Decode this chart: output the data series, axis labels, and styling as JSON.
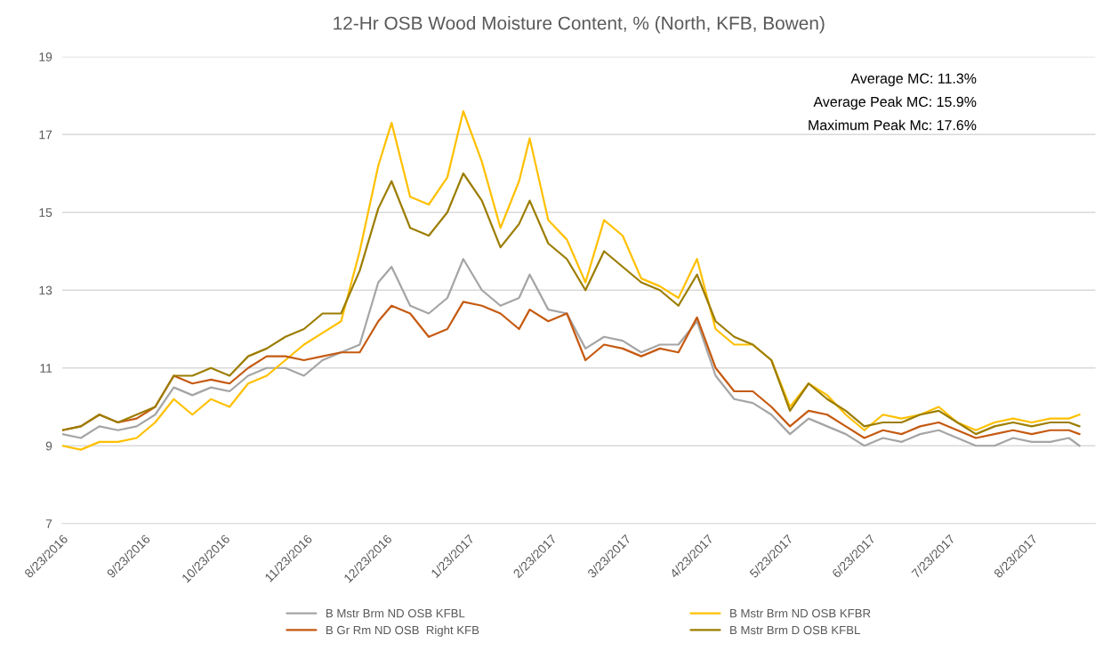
{
  "chart_data": {
    "type": "line",
    "title": "12-Hr OSB Wood Moisture Content, % (North, KFB, Bowen)",
    "x": [
      "2016-08-23",
      "2016-08-30",
      "2016-09-06",
      "2016-09-13",
      "2016-09-20",
      "2016-09-27",
      "2016-10-04",
      "2016-10-11",
      "2016-10-18",
      "2016-10-25",
      "2016-11-01",
      "2016-11-08",
      "2016-11-15",
      "2016-11-22",
      "2016-11-29",
      "2016-12-06",
      "2016-12-13",
      "2016-12-20",
      "2016-12-25",
      "2017-01-01",
      "2017-01-08",
      "2017-01-15",
      "2017-01-21",
      "2017-01-28",
      "2017-02-04",
      "2017-02-11",
      "2017-02-15",
      "2017-02-22",
      "2017-03-01",
      "2017-03-08",
      "2017-03-15",
      "2017-03-22",
      "2017-03-29",
      "2017-04-05",
      "2017-04-12",
      "2017-04-19",
      "2017-04-26",
      "2017-05-03",
      "2017-05-10",
      "2017-05-17",
      "2017-05-24",
      "2017-05-31",
      "2017-06-07",
      "2017-06-14",
      "2017-06-21",
      "2017-06-28",
      "2017-07-05",
      "2017-07-12",
      "2017-07-19",
      "2017-07-26",
      "2017-08-02",
      "2017-08-09",
      "2017-08-16",
      "2017-08-23",
      "2017-08-30",
      "2017-09-06",
      "2017-09-10"
    ],
    "series": [
      {
        "name": "B Mstr Brm ND OSB KFBL",
        "color": "#a5a5a5",
        "values": [
          9.3,
          9.2,
          9.5,
          9.4,
          9.5,
          9.8,
          10.5,
          10.3,
          10.5,
          10.4,
          10.8,
          11.0,
          11.0,
          10.8,
          11.2,
          11.4,
          11.6,
          13.2,
          13.6,
          12.6,
          12.4,
          12.8,
          13.8,
          13.0,
          12.6,
          12.8,
          13.4,
          12.5,
          12.4,
          11.5,
          11.8,
          11.7,
          11.4,
          11.6,
          11.6,
          12.2,
          10.8,
          10.2,
          10.1,
          9.8,
          9.3,
          9.7,
          9.5,
          9.3,
          9.0,
          9.2,
          9.1,
          9.3,
          9.4,
          9.2,
          9.0,
          9.0,
          9.2,
          9.1,
          9.1,
          9.2,
          9.0
        ]
      },
      {
        "name": "B Mstr Brm ND OSB KFBR",
        "color": "#ffc000",
        "values": [
          9.0,
          8.9,
          9.1,
          9.1,
          9.2,
          9.6,
          10.2,
          9.8,
          10.2,
          10.0,
          10.6,
          10.8,
          11.2,
          11.6,
          11.9,
          12.2,
          14.0,
          16.2,
          17.3,
          15.4,
          15.2,
          15.9,
          17.6,
          16.3,
          14.6,
          15.8,
          16.9,
          14.8,
          14.3,
          13.2,
          14.8,
          14.4,
          13.3,
          13.1,
          12.8,
          13.8,
          12.0,
          11.6,
          11.6,
          11.2,
          10.0,
          10.6,
          10.3,
          9.8,
          9.4,
          9.8,
          9.7,
          9.8,
          10.0,
          9.6,
          9.4,
          9.6,
          9.7,
          9.6,
          9.7,
          9.7,
          9.8
        ]
      },
      {
        "name": "B Gr Rm ND OSB  Right KFB",
        "color": "#c55a11",
        "values": [
          9.4,
          9.5,
          9.8,
          9.6,
          9.7,
          10.0,
          10.8,
          10.6,
          10.7,
          10.6,
          11.0,
          11.3,
          11.3,
          11.2,
          11.3,
          11.4,
          11.4,
          12.2,
          12.6,
          12.4,
          11.8,
          12.0,
          12.7,
          12.6,
          12.4,
          12.0,
          12.5,
          12.2,
          12.4,
          11.2,
          11.6,
          11.5,
          11.3,
          11.5,
          11.4,
          12.3,
          11.0,
          10.4,
          10.4,
          10.0,
          9.5,
          9.9,
          9.8,
          9.5,
          9.2,
          9.4,
          9.3,
          9.5,
          9.6,
          9.4,
          9.2,
          9.3,
          9.4,
          9.3,
          9.4,
          9.4,
          9.3
        ]
      },
      {
        "name": "B Mstr Brm D OSB KFBL",
        "color": "#9c7d00",
        "values": [
          9.4,
          9.5,
          9.8,
          9.6,
          9.8,
          10.0,
          10.8,
          10.8,
          11.0,
          10.8,
          11.3,
          11.5,
          11.8,
          12.0,
          12.4,
          12.4,
          13.5,
          15.1,
          15.8,
          14.6,
          14.4,
          15.0,
          16.0,
          15.3,
          14.1,
          14.7,
          15.3,
          14.2,
          13.8,
          13.0,
          14.0,
          13.6,
          13.2,
          13.0,
          12.6,
          13.4,
          12.2,
          11.8,
          11.6,
          11.2,
          9.9,
          10.6,
          10.2,
          9.9,
          9.5,
          9.6,
          9.6,
          9.8,
          9.9,
          9.6,
          9.3,
          9.5,
          9.6,
          9.5,
          9.6,
          9.6,
          9.5
        ]
      }
    ],
    "xlim": [
      "2016-08-23",
      "2017-09-16"
    ],
    "xticks": [
      {
        "value": "2016-08-23",
        "label": "8/23/2016"
      },
      {
        "value": "2016-09-23",
        "label": "9/23/2016"
      },
      {
        "value": "2016-10-23",
        "label": "10/23/2016"
      },
      {
        "value": "2016-11-23",
        "label": "11/23/2016"
      },
      {
        "value": "2016-12-23",
        "label": "12/23/2016"
      },
      {
        "value": "2017-01-23",
        "label": "1/23/2017"
      },
      {
        "value": "2017-02-23",
        "label": "2/23/2017"
      },
      {
        "value": "2017-03-23",
        "label": "3/23/2017"
      },
      {
        "value": "2017-04-23",
        "label": "4/23/2017"
      },
      {
        "value": "2017-05-23",
        "label": "5/23/2017"
      },
      {
        "value": "2017-06-23",
        "label": "6/23/2017"
      },
      {
        "value": "2017-07-23",
        "label": "7/23/2017"
      },
      {
        "value": "2017-08-23",
        "label": "8/23/2017"
      }
    ],
    "ylim": [
      7,
      19
    ],
    "yticks": [
      7,
      9,
      11,
      13,
      15,
      17,
      19
    ],
    "grid": "y",
    "legend": "bottom",
    "marker": "none",
    "line_style": "solid",
    "annotations": [
      "Average MC: 11.3%",
      "Average Peak MC: 15.9%",
      "Maximum Peak Mc: 17.6%"
    ]
  }
}
